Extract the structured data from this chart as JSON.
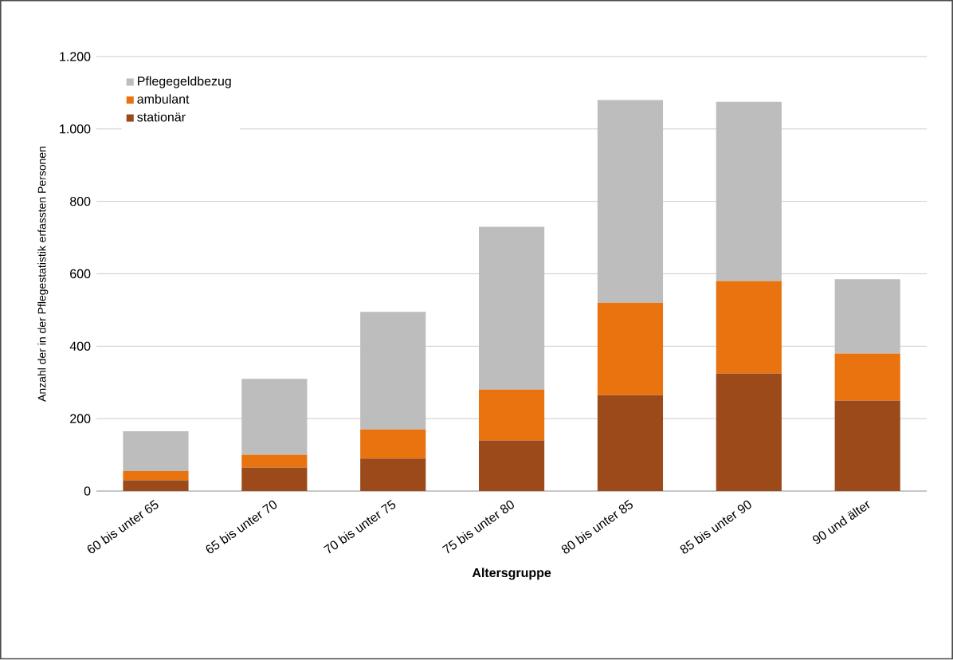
{
  "chart_data": {
    "type": "bar",
    "stacked": true,
    "xlabel": "Altersgruppe",
    "ylabel": "Anzahl der in der Pflegestatistik erfassten Personen",
    "categories": [
      "60 bis unter 65",
      "65 bis unter 70",
      "70 bis unter 75",
      "75 bis unter 80",
      "80 bis unter 85",
      "85 bis unter 90",
      "90 und älter"
    ],
    "series": [
      {
        "name": "stationär",
        "color": "#9c4a1a",
        "values": [
          30,
          65,
          90,
          140,
          265,
          325,
          250
        ]
      },
      {
        "name": "ambulant",
        "color": "#e8730f",
        "values": [
          25,
          35,
          80,
          140,
          255,
          255,
          130
        ]
      },
      {
        "name": "Pflegegeldbezug",
        "color": "#bdbdbd",
        "values": [
          110,
          210,
          325,
          450,
          560,
          495,
          205
        ]
      }
    ],
    "ylim": [
      0,
      1200
    ],
    "yticks": [
      0,
      200,
      400,
      600,
      800,
      {
        "value": 1000,
        "label": "1.000"
      },
      {
        "value": 1200,
        "label": "1.200"
      }
    ],
    "grid": "y",
    "legend": "top left"
  }
}
